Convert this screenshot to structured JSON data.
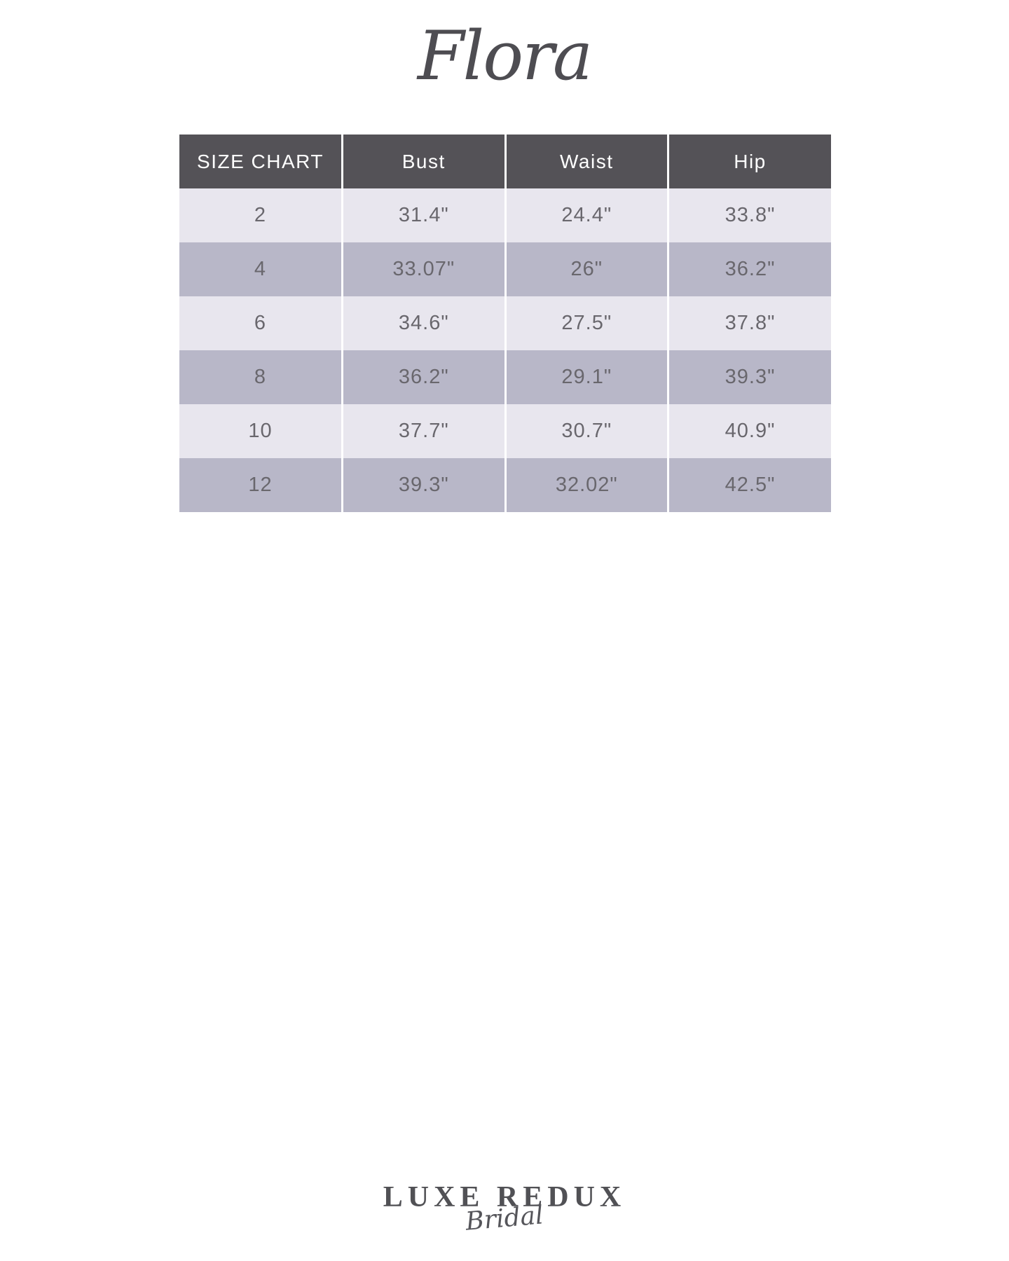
{
  "title": {
    "text": "Flora"
  },
  "size_chart": {
    "columns": [
      "SIZE CHART",
      "Bust",
      "Waist",
      "Hip"
    ],
    "rows": [
      [
        "2",
        "31.4\"",
        "24.4\"",
        "33.8\""
      ],
      [
        "4",
        "33.07\"",
        "26\"",
        "36.2\""
      ],
      [
        "6",
        "34.6\"",
        "27.5\"",
        "37.8\""
      ],
      [
        "8",
        "36.2\"",
        "29.1\"",
        "39.3\""
      ],
      [
        "10",
        "37.7\"",
        "30.7\"",
        "40.9\""
      ],
      [
        "12",
        "39.3\"",
        "32.02\"",
        "42.5\""
      ]
    ],
    "colors": {
      "header_bg": "#545257",
      "header_text": "#ffffff",
      "row_light_bg": "#e8e6ee",
      "row_dark_bg": "#b8b7c8",
      "cell_text": "#69676d",
      "divider": "#ffffff"
    }
  },
  "footer_logo": {
    "line1": "LUXE REDUX",
    "line2": "Bridal"
  }
}
